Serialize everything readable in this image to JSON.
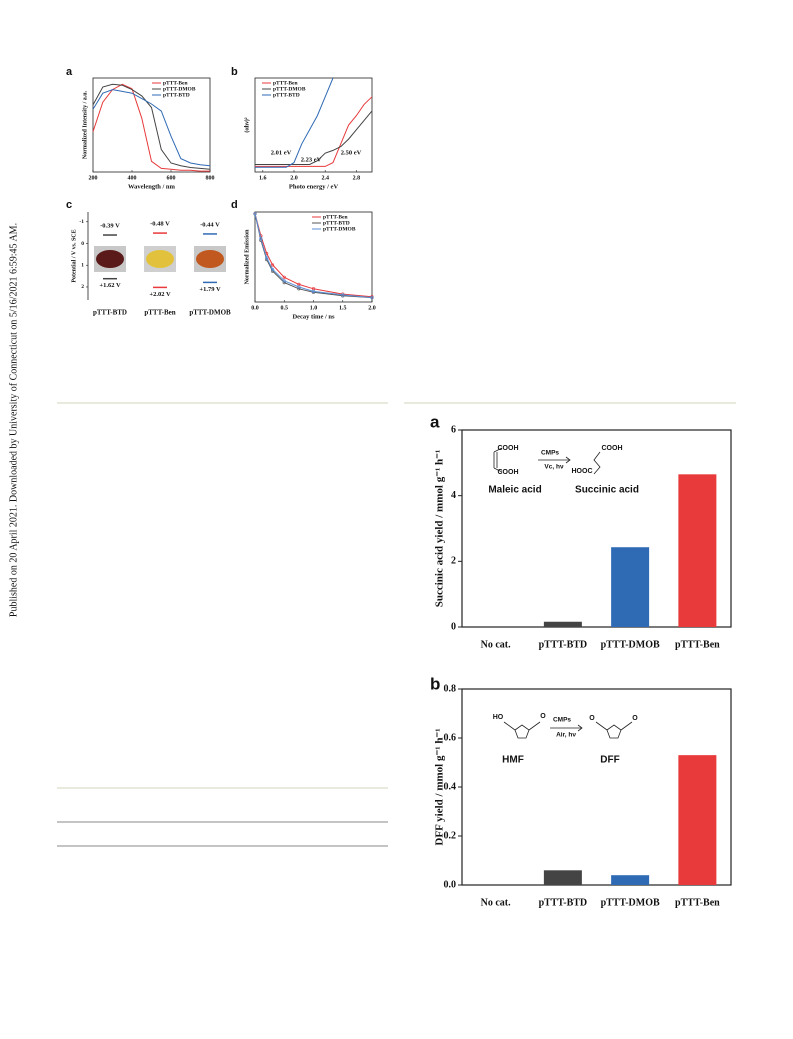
{
  "watermark": "Published on 20 April 2021. Downloaded by University of Connecticut on 5/16/2021 6:59:45 AM.",
  "chart_data": [
    {
      "type": "line",
      "panel_label": "a",
      "xlabel": "Wavelength / nm",
      "ylabel": "Normalized Intensity / a.u.",
      "x": [
        200,
        250,
        300,
        350,
        400,
        450,
        500,
        550,
        600,
        650,
        700,
        750,
        800
      ],
      "xlim": [
        200,
        800
      ],
      "xticks": [
        200,
        400,
        600,
        800
      ],
      "ylim": [
        0,
        1.05
      ],
      "series": [
        {
          "name": "pTTT-Ben",
          "color": "#e8393b",
          "values": [
            0.45,
            0.78,
            0.92,
            0.98,
            0.93,
            0.6,
            0.12,
            0.04,
            0.03,
            0.02,
            0.02,
            0.01,
            0.01
          ]
        },
        {
          "name": "pTTT-DMOB",
          "color": "#444444",
          "values": [
            0.75,
            0.95,
            0.98,
            0.97,
            0.92,
            0.85,
            0.72,
            0.25,
            0.1,
            0.07,
            0.05,
            0.04,
            0.03
          ]
        },
        {
          "name": "pTTT-BTD",
          "color": "#2f6ab5",
          "values": [
            0.7,
            0.88,
            0.92,
            0.9,
            0.88,
            0.82,
            0.76,
            0.68,
            0.4,
            0.15,
            0.1,
            0.08,
            0.07
          ]
        }
      ]
    },
    {
      "type": "line",
      "panel_label": "b",
      "xlabel": "Photo energy / eV",
      "ylabel": "(αhν)²",
      "x": [
        1.5,
        1.6,
        1.7,
        1.8,
        1.9,
        2.0,
        2.1,
        2.2,
        2.3,
        2.4,
        2.5,
        2.6,
        2.7,
        2.8,
        2.9,
        3.0
      ],
      "xlim": [
        1.5,
        3.0
      ],
      "xticks": [
        1.6,
        {
          "value": 2,
          "label": "2.0"
        },
        2.4,
        2.8
      ],
      "ylim": [
        0,
        1
      ],
      "annotations": [
        "2.01 eV",
        "2.23 eV",
        "2.50 eV"
      ],
      "series": [
        {
          "name": "pTTT-Ben",
          "color": "#e8393b",
          "values": [
            0.06,
            0.06,
            0.06,
            0.06,
            0.06,
            0.06,
            0.06,
            0.06,
            0.06,
            0.06,
            0.1,
            0.3,
            0.5,
            0.6,
            0.72,
            0.8
          ]
        },
        {
          "name": "pTTT-DMOB",
          "color": "#444444",
          "values": [
            0.08,
            0.08,
            0.08,
            0.08,
            0.08,
            0.08,
            0.08,
            0.08,
            0.12,
            0.2,
            0.23,
            0.27,
            0.35,
            0.45,
            0.55,
            0.65
          ]
        },
        {
          "name": "pTTT-BTD",
          "color": "#2f6ab5",
          "values": [
            0.05,
            0.05,
            0.05,
            0.05,
            0.05,
            0.1,
            0.3,
            0.45,
            0.6,
            0.8,
            1.0,
            null,
            null,
            null,
            null,
            null
          ]
        }
      ]
    },
    {
      "type": "energy-levels",
      "panel_label": "c",
      "ylabel": "Potential / V vs. SCE",
      "categories": [
        "pTTT-BTD",
        "pTTT-Ben",
        "pTTT-DMOB"
      ],
      "colors": [
        "#444444",
        "#e8393b",
        "#2f6ab5"
      ],
      "ylim": [
        2.6,
        -1.45
      ],
      "yticks": [
        -1,
        0,
        1,
        2
      ],
      "series": [
        {
          "values": [
            -0.39,
            -0.48,
            -0.44
          ],
          "value_labels": [
            "-0.39 V",
            "-0.48 V",
            "-0.44 V"
          ]
        },
        {
          "values": [
            1.62,
            2.02,
            1.79
          ],
          "value_labels": [
            "+1.62 V",
            "+2.02 V",
            "+1.79 V"
          ]
        }
      ]
    },
    {
      "type": "line",
      "panel_label": "d",
      "xlabel": "Decay time / ns",
      "ylabel": "Normalized Emission",
      "markers": true,
      "x": [
        0,
        0.1,
        0.2,
        0.3,
        0.5,
        0.75,
        1.0,
        1.5,
        2.0
      ],
      "xlim": [
        0,
        2
      ],
      "xticks": [
        {
          "value": 0,
          "label": "0.0"
        },
        0.5,
        {
          "value": 1,
          "label": "1.0"
        },
        1.5,
        {
          "value": 2,
          "label": "2.0"
        }
      ],
      "ylim": [
        0,
        1.02
      ],
      "series": [
        {
          "name": "pTTT-Ben",
          "color": "#e8393b",
          "values": [
            1,
            0.75,
            0.55,
            0.42,
            0.28,
            0.2,
            0.15,
            0.09,
            0.06
          ]
        },
        {
          "name": "pTTT-BTD",
          "color": "#555555",
          "values": [
            1,
            0.7,
            0.48,
            0.35,
            0.22,
            0.15,
            0.11,
            0.07,
            0.05
          ]
        },
        {
          "name": "pTTT-DMOB",
          "color": "#5b8fd6",
          "values": [
            1,
            0.72,
            0.5,
            0.37,
            0.24,
            0.17,
            0.12,
            0.08,
            0.05
          ]
        }
      ]
    },
    {
      "type": "bar",
      "panel_label": "a",
      "ylabel": "Succinic acid yield / mmol g⁻¹ h⁻¹",
      "categories": [
        "No cat.",
        "pTTT-BTD",
        "pTTT-DMOB",
        "pTTT-Ben"
      ],
      "values": [
        0,
        0.16,
        2.43,
        4.65
      ],
      "colors": [
        "#444444",
        "#444444",
        "#2f6ab5",
        "#e8393b"
      ],
      "ylim": [
        0,
        6
      ],
      "yticks": [
        0,
        2,
        4,
        6
      ],
      "inset_labels": [
        "COOH",
        "COOH",
        "CMPs",
        "Vc, hν",
        "COOH",
        "HOOC",
        "Maleic acid",
        "Succinic acid"
      ]
    },
    {
      "type": "bar",
      "panel_label": "b",
      "ylabel": "DFF yield / mmol g⁻¹ h⁻¹",
      "categories": [
        "No cat.",
        "pTTT-BTD",
        "pTTT-DMOB",
        "pTTT-Ben"
      ],
      "values": [
        0,
        0.06,
        0.04,
        0.53
      ],
      "colors": [
        "#444444",
        "#444444",
        "#2f6ab5",
        "#e8393b"
      ],
      "ylim": [
        0,
        0.8
      ],
      "yticks": [
        {
          "value": 0,
          "label": "0.0"
        },
        0.2,
        0.4,
        0.6,
        0.8
      ],
      "inset_labels": [
        "HO",
        "O",
        "CMPs",
        "Air, hν",
        "O",
        "O",
        "HMF",
        "DFF"
      ]
    }
  ]
}
